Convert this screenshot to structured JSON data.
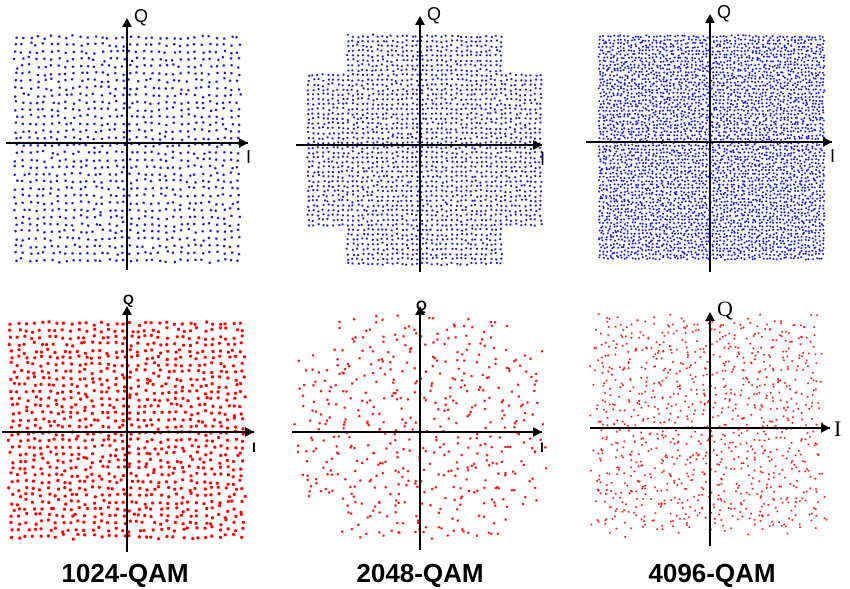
{
  "chart_data": [
    {
      "type": "scatter",
      "scheme": "1024-QAM",
      "variant": "received",
      "title": "",
      "xlabel": "I",
      "ylabel": "Q",
      "color": "#1a1acd",
      "outline": "square",
      "grid_points": 32,
      "xlim": [
        -31,
        31
      ],
      "ylim": [
        -31,
        31
      ]
    },
    {
      "type": "scatter",
      "scheme": "2048-QAM",
      "variant": "received",
      "title": "",
      "xlabel": "I",
      "ylabel": "Q",
      "color": "#1a1acd",
      "outline": "cross",
      "grid_points": 48,
      "xlim": [
        -47,
        47
      ],
      "ylim": [
        -47,
        47
      ]
    },
    {
      "type": "scatter",
      "scheme": "4096-QAM",
      "variant": "received",
      "title": "",
      "xlabel": "I",
      "ylabel": "Q",
      "color": "#1414e6",
      "outline": "square",
      "grid_points": 64,
      "xlim": [
        -63,
        63
      ],
      "ylim": [
        -63,
        63
      ]
    },
    {
      "type": "scatter",
      "scheme": "1024-QAM",
      "variant": "received-noisy",
      "title": "",
      "xlabel": "I",
      "ylabel": "Q",
      "color": "#ff0000",
      "outline": "square",
      "grid_points": 32,
      "xlim": [
        -31,
        31
      ],
      "ylim": [
        -31,
        31
      ]
    },
    {
      "type": "scatter",
      "scheme": "2048-QAM",
      "variant": "received-noisy",
      "title": "",
      "xlabel": "I",
      "ylabel": "Q",
      "color": "#ee1c1c",
      "outline": "cross",
      "grid_points": 48,
      "xlim": [
        -47,
        47
      ],
      "ylim": [
        -47,
        47
      ]
    },
    {
      "type": "scatter",
      "scheme": "4096-QAM",
      "variant": "received-noisy",
      "title": "",
      "xlabel": "I",
      "ylabel": "Q",
      "color": "#ee1c1c",
      "outline": "square",
      "grid_points": 64,
      "xlim": [
        -63,
        63
      ],
      "ylim": [
        -63,
        63
      ]
    }
  ],
  "labels": [
    "1024-QAM",
    "2048-QAM",
    "4096-QAM"
  ]
}
